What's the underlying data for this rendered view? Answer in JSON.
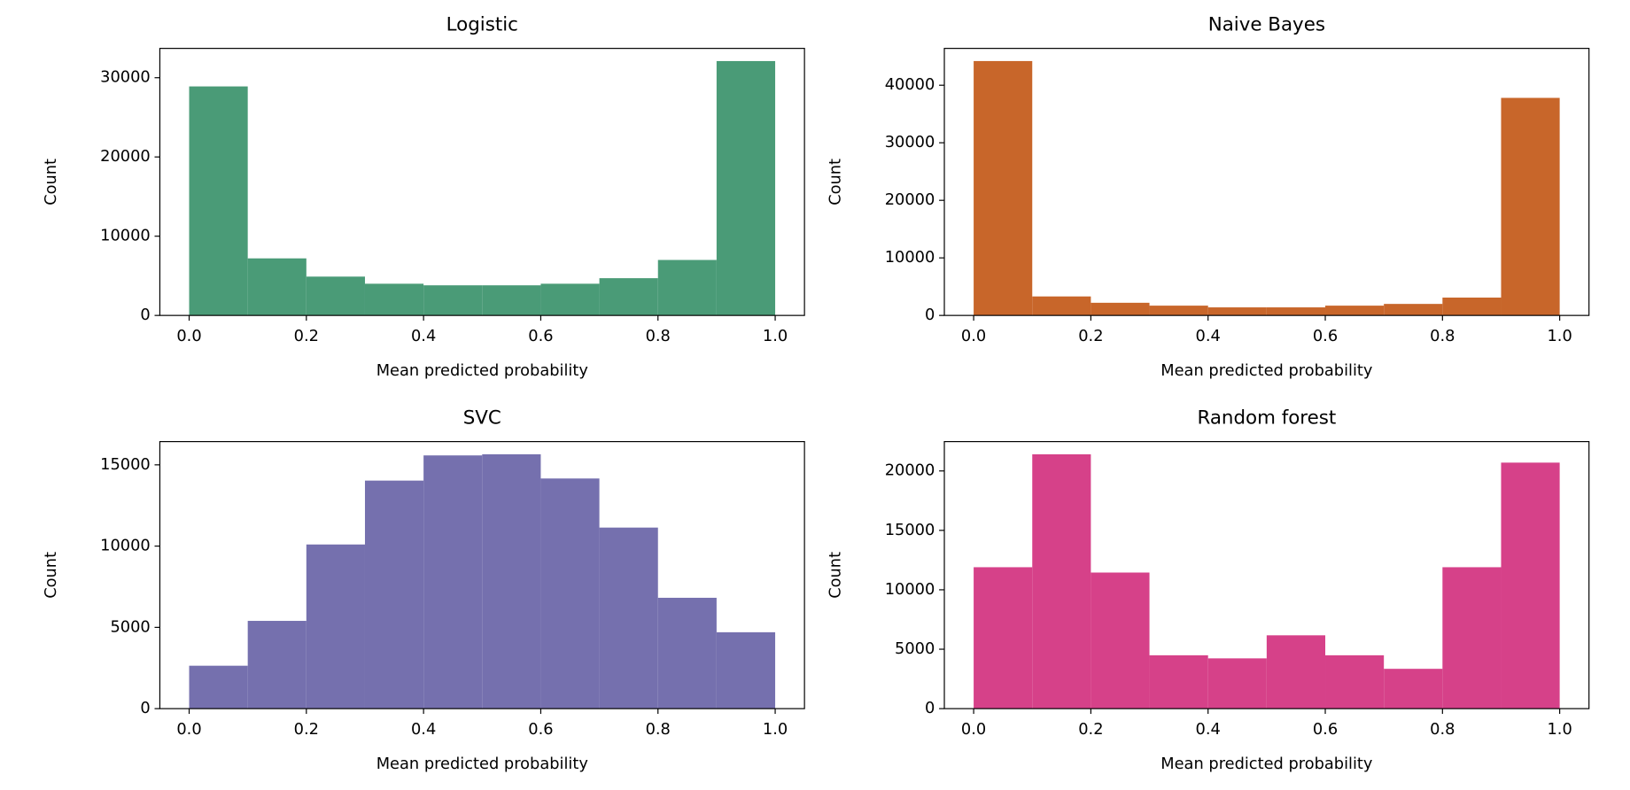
{
  "chart_data": [
    {
      "type": "histogram",
      "title": "Logistic",
      "x_label": "Mean predicted probability",
      "y_label": "Count",
      "color": "#4a9b77",
      "bins": [
        0,
        0.1,
        0.2,
        0.3,
        0.4,
        0.5,
        0.6,
        0.7,
        0.8,
        0.9,
        1
      ],
      "values": [
        28900,
        7200,
        4900,
        4000,
        3800,
        3800,
        4000,
        4700,
        7000,
        32100
      ],
      "xlim": [
        -0.05,
        1.05
      ],
      "xticks": [
        {
          "value": 0,
          "label": "0.0"
        },
        0.2,
        0.4,
        0.6,
        0.8,
        {
          "value": 1,
          "label": "1.0"
        }
      ],
      "ylim": [
        0,
        33700
      ],
      "yticks": [
        0,
        10000,
        20000,
        30000
      ]
    },
    {
      "type": "histogram",
      "title": "Naive Bayes",
      "x_label": "Mean predicted probability",
      "y_label": "Count",
      "color": "#c8662a",
      "bins": [
        0,
        0.1,
        0.2,
        0.3,
        0.4,
        0.5,
        0.6,
        0.7,
        0.8,
        0.9,
        1
      ],
      "values": [
        44200,
        3300,
        2200,
        1700,
        1400,
        1400,
        1700,
        2000,
        3100,
        37800
      ],
      "xlim": [
        -0.05,
        1.05
      ],
      "xticks": [
        {
          "value": 0,
          "label": "0.0"
        },
        0.2,
        0.4,
        0.6,
        0.8,
        {
          "value": 1,
          "label": "1.0"
        }
      ],
      "ylim": [
        0,
        46400
      ],
      "yticks": [
        0,
        10000,
        20000,
        30000,
        40000
      ]
    },
    {
      "type": "histogram",
      "title": "SVC",
      "x_label": "Mean predicted probability",
      "y_label": "Count",
      "color": "#7570ae",
      "bins": [
        0,
        0.1,
        0.2,
        0.3,
        0.4,
        0.5,
        0.6,
        0.7,
        0.8,
        0.9,
        1
      ],
      "values": [
        2640,
        5400,
        10100,
        14030,
        15580,
        15650,
        14160,
        11140,
        6820,
        4700
      ],
      "xlim": [
        -0.05,
        1.05
      ],
      "xticks": [
        {
          "value": 0,
          "label": "0.0"
        },
        0.2,
        0.4,
        0.6,
        0.8,
        {
          "value": 1,
          "label": "1.0"
        }
      ],
      "ylim": [
        0,
        16430
      ],
      "yticks": [
        0,
        5000,
        10000,
        15000
      ]
    },
    {
      "type": "histogram",
      "title": "Random forest",
      "x_label": "Mean predicted probability",
      "y_label": "Count",
      "color": "#d64189",
      "bins": [
        0,
        0.1,
        0.2,
        0.3,
        0.4,
        0.5,
        0.6,
        0.7,
        0.8,
        0.9,
        1
      ],
      "values": [
        11900,
        21400,
        11450,
        4490,
        4230,
        6170,
        4490,
        3350,
        11900,
        20700
      ],
      "xlim": [
        -0.05,
        1.05
      ],
      "xticks": [
        {
          "value": 0,
          "label": "0.0"
        },
        0.2,
        0.4,
        0.6,
        0.8,
        {
          "value": 1,
          "label": "1.0"
        }
      ],
      "ylim": [
        0,
        22470
      ],
      "yticks": [
        0,
        5000,
        10000,
        15000,
        20000
      ]
    }
  ]
}
